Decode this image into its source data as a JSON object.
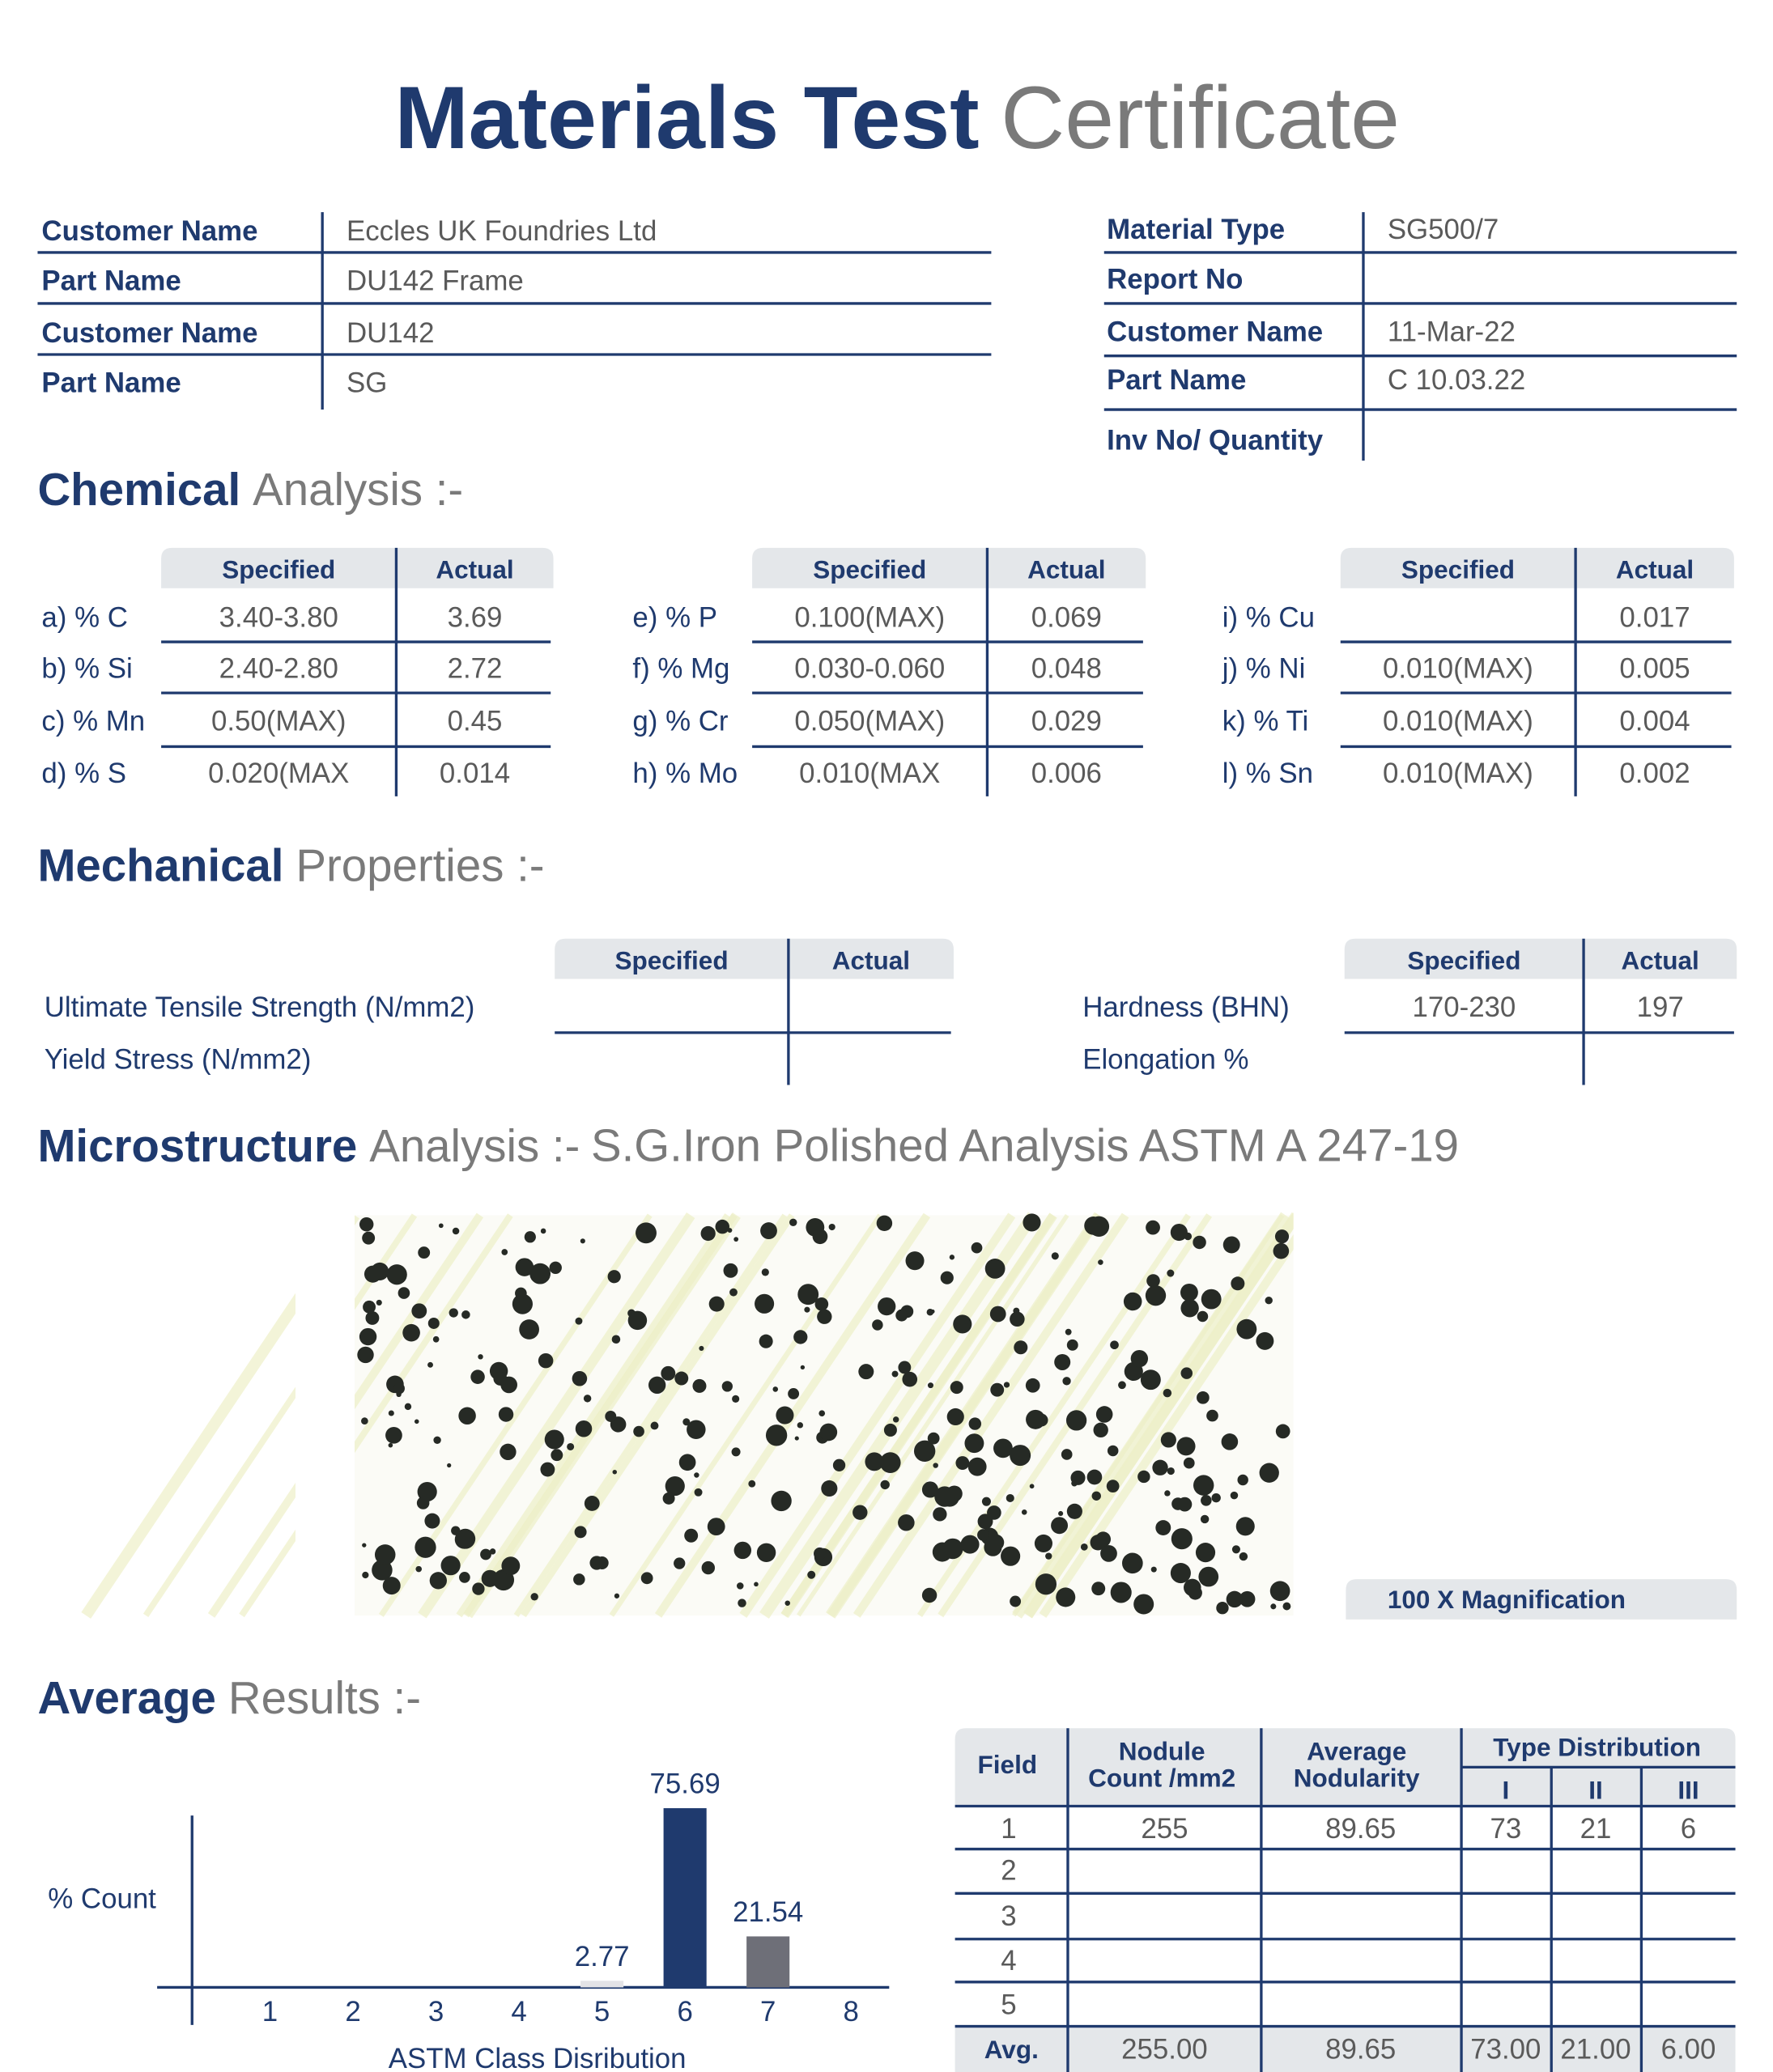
{
  "header": {
    "title_bold": "Materials Test",
    "title_light": "Certificate"
  },
  "info_left": [
    {
      "label": "Customer Name",
      "value": "Eccles UK Foundries Ltd"
    },
    {
      "label": "Part Name",
      "value": "DU142 Frame"
    },
    {
      "label": "Customer Name",
      "value": "DU142"
    },
    {
      "label": "Part Name",
      "value": "SG"
    }
  ],
  "info_right": [
    {
      "label": "Material Type",
      "value": "SG500/7"
    },
    {
      "label": "Report No"
    },
    {
      "label": "Customer Name",
      "value": "11-Mar-22"
    },
    {
      "label": "Part Name",
      "value": "C 10.03.22"
    },
    {
      "label": "Inv No/ Quantity"
    }
  ],
  "chemical": {
    "heading_bold": "Chemical",
    "heading_light": "Analysis :-",
    "columns": [
      "Specified",
      "Actual"
    ],
    "groups": [
      [
        {
          "element": "a) % C",
          "specified": "3.40-3.80",
          "actual": "3.69"
        },
        {
          "element": "b) % Si",
          "specified": "2.40-2.80",
          "actual": "2.72"
        },
        {
          "element": "c) % Mn",
          "specified": "0.50(MAX)",
          "actual": "0.45"
        },
        {
          "element": "d) % S",
          "specified": "0.020(MAX",
          "actual": "0.014"
        }
      ],
      [
        {
          "element": "e) % P",
          "specified": "0.100(MAX)",
          "actual": "0.069"
        },
        {
          "element": "f) % Mg",
          "specified": "0.030-0.060",
          "actual": "0.048"
        },
        {
          "element": "g) % Cr",
          "specified": "0.050(MAX)",
          "actual": "0.029"
        },
        {
          "element": "h) % Mo",
          "specified": "0.010(MAX",
          "actual": "0.006"
        }
      ],
      [
        {
          "element": "i) % Cu",
          "actual": "0.017"
        },
        {
          "element": "j) % Ni",
          "specified": "0.010(MAX)",
          "actual": "0.005"
        },
        {
          "element": "k) % Ti",
          "specified": "0.010(MAX)",
          "actual": "0.004"
        },
        {
          "element": "l) % Sn",
          "specified": "0.010(MAX)",
          "actual": "0.002"
        }
      ]
    ]
  },
  "mechanical": {
    "heading_bold": "Mechanical",
    "heading_light": "Properties :-",
    "columns": [
      "Specified",
      "Actual"
    ],
    "groups": [
      [
        {
          "property": "Ultimate Tensile Strength (N/mm2)"
        },
        {
          "property": "Yield Stress (N/mm2)"
        }
      ],
      [
        {
          "property": "Hardness (BHN)",
          "specified": "170-230",
          "actual": "197"
        },
        {
          "property": "Elongation %"
        }
      ]
    ]
  },
  "microstructure": {
    "heading_bold": "Microstructure",
    "heading_light": "Analysis :-",
    "standard": "S.G.Iron Polished Analysis ASTM A 247-19",
    "magnification": "100 X Magnification"
  },
  "average_results": {
    "heading_bold": "Average",
    "heading_light": "Results :-",
    "table": {
      "field": "Field",
      "nodule": [
        "Nodule",
        "Count /mm2"
      ],
      "nodularity": [
        "Average",
        "Nodularity"
      ],
      "type_distribution": "Type Distribution",
      "types": [
        "I",
        "II",
        "III"
      ],
      "rows": [
        [
          "1",
          "255",
          "89.65",
          "73",
          "21",
          "6"
        ],
        [
          "2"
        ],
        [
          "3"
        ],
        [
          "4"
        ],
        [
          "5"
        ]
      ],
      "average": [
        "Avg.",
        "255.00",
        "89.65",
        "73.00",
        "21.00",
        "6.00"
      ]
    }
  },
  "chart_data": {
    "type": "bar",
    "y_label": "% Count",
    "x_label": "ASTM Class Disribution",
    "categories": [
      "1",
      "2",
      "3",
      "4",
      "5",
      "6",
      "7",
      "8"
    ],
    "values": [
      null,
      null,
      null,
      null,
      2.77,
      75.69,
      21.54,
      null
    ],
    "colors": [
      null,
      null,
      null,
      null,
      "#e3e3e6",
      "#1f3a6e",
      "#6e6f78",
      null
    ],
    "ylim": [
      0,
      76
    ]
  }
}
